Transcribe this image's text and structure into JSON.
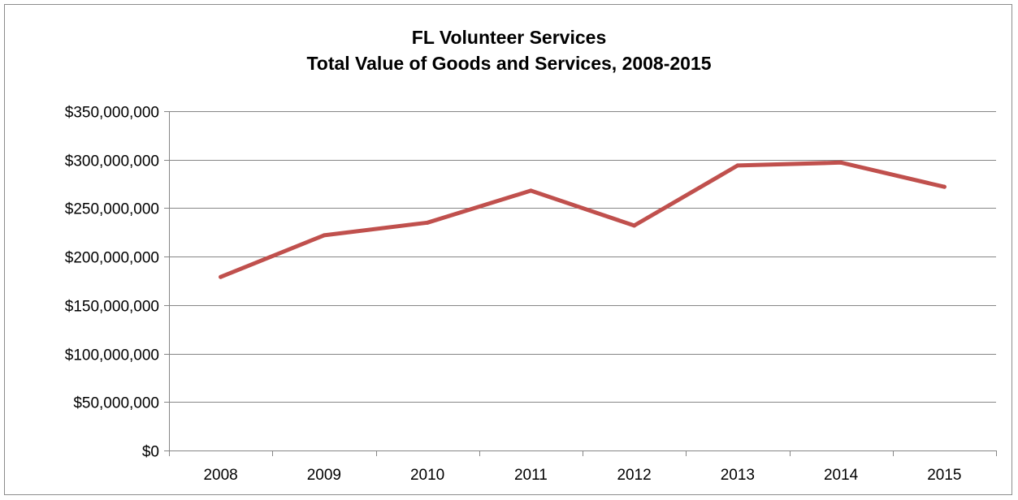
{
  "chart_data": {
    "type": "line",
    "title": "FL Volunteer Services",
    "subtitle": "Total Value of Goods and Services, 2008-2015",
    "categories": [
      "2008",
      "2009",
      "2010",
      "2011",
      "2012",
      "2013",
      "2014",
      "2015"
    ],
    "series": [
      {
        "values": [
          179000000,
          222000000,
          235000000,
          268000000,
          232000000,
          294000000,
          297000000,
          272000000
        ]
      }
    ],
    "ylim": [
      0,
      350000000
    ],
    "yticks": [
      0,
      50000000,
      100000000,
      150000000,
      200000000,
      250000000,
      300000000,
      350000000
    ],
    "ytick_labels": [
      "$0",
      "$50,000,000",
      "$100,000,000",
      "$150,000,000",
      "$200,000,000",
      "$250,000,000",
      "$300,000,000",
      "$350,000,000"
    ],
    "xlabel": "",
    "ylabel": "",
    "grid": true,
    "line_color": "#c0504d",
    "grid_color": "#868686"
  }
}
